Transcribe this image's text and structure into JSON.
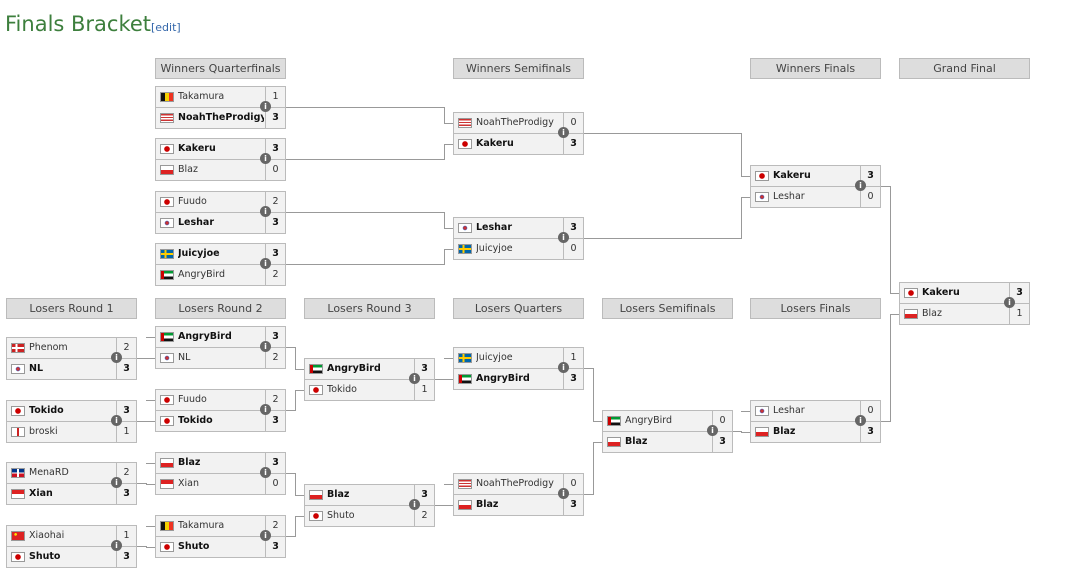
{
  "title": "Finals Bracket",
  "edit_label": "[edit]",
  "rounds": [
    {
      "title": "Winners Quarterfinals",
      "matches": [
        {
          "players": [
            {
              "name": "Takamura",
              "flag": "BE",
              "score": "1",
              "winner": false
            },
            {
              "name": "NoahTheProdigy",
              "flag": "US",
              "score": "3",
              "winner": true
            }
          ]
        },
        {
          "players": [
            {
              "name": "Kakeru",
              "flag": "JP",
              "score": "3",
              "winner": true
            },
            {
              "name": "Blaz",
              "flag": "CL",
              "score": "0",
              "winner": false
            }
          ]
        },
        {
          "players": [
            {
              "name": "Fuudo",
              "flag": "JP",
              "score": "2",
              "winner": false
            },
            {
              "name": "Leshar",
              "flag": "KR",
              "score": "3",
              "winner": true
            }
          ]
        },
        {
          "players": [
            {
              "name": "Juicyjoe",
              "flag": "SE",
              "score": "3",
              "winner": true
            },
            {
              "name": "AngryBird",
              "flag": "AE",
              "score": "2",
              "winner": false
            }
          ]
        }
      ]
    },
    {
      "title": "Winners Semifinals",
      "matches": [
        {
          "players": [
            {
              "name": "NoahTheProdigy",
              "flag": "US",
              "score": "0",
              "winner": false
            },
            {
              "name": "Kakeru",
              "flag": "JP",
              "score": "3",
              "winner": true
            }
          ]
        },
        {
          "players": [
            {
              "name": "Leshar",
              "flag": "KR",
              "score": "3",
              "winner": true
            },
            {
              "name": "Juicyjoe",
              "flag": "SE",
              "score": "0",
              "winner": false
            }
          ]
        }
      ]
    },
    {
      "title": "Winners Finals",
      "matches": [
        {
          "players": [
            {
              "name": "Kakeru",
              "flag": "JP",
              "score": "3",
              "winner": true
            },
            {
              "name": "Leshar",
              "flag": "KR",
              "score": "0",
              "winner": false
            }
          ]
        }
      ]
    },
    {
      "title": "Grand Final",
      "matches": [
        {
          "players": [
            {
              "name": "Kakeru",
              "flag": "JP",
              "score": "3",
              "winner": true
            },
            {
              "name": "Blaz",
              "flag": "CL",
              "score": "1",
              "winner": false
            }
          ]
        }
      ]
    },
    {
      "title": "Losers Round 1",
      "matches": [
        {
          "players": [
            {
              "name": "Phenom",
              "flag": "NO",
              "score": "2",
              "winner": false
            },
            {
              "name": "NL",
              "flag": "KR",
              "score": "3",
              "winner": true
            }
          ]
        },
        {
          "players": [
            {
              "name": "Tokido",
              "flag": "JP",
              "score": "3",
              "winner": true
            },
            {
              "name": "broski",
              "flag": "GB",
              "score": "1",
              "winner": false
            }
          ]
        },
        {
          "players": [
            {
              "name": "MenaRD",
              "flag": "DO",
              "score": "2",
              "winner": false
            },
            {
              "name": "Xian",
              "flag": "SG",
              "score": "3",
              "winner": true
            }
          ]
        },
        {
          "players": [
            {
              "name": "Xiaohai",
              "flag": "CN",
              "score": "1",
              "winner": false
            },
            {
              "name": "Shuto",
              "flag": "JP",
              "score": "3",
              "winner": true
            }
          ]
        }
      ]
    },
    {
      "title": "Losers Round 2",
      "matches": [
        {
          "players": [
            {
              "name": "AngryBird",
              "flag": "AE",
              "score": "3",
              "winner": true
            },
            {
              "name": "NL",
              "flag": "KR",
              "score": "2",
              "winner": false
            }
          ]
        },
        {
          "players": [
            {
              "name": "Fuudo",
              "flag": "JP",
              "score": "2",
              "winner": false
            },
            {
              "name": "Tokido",
              "flag": "JP",
              "score": "3",
              "winner": true
            }
          ]
        },
        {
          "players": [
            {
              "name": "Blaz",
              "flag": "CL",
              "score": "3",
              "winner": true
            },
            {
              "name": "Xian",
              "flag": "SG",
              "score": "0",
              "winner": false
            }
          ]
        },
        {
          "players": [
            {
              "name": "Takamura",
              "flag": "BE",
              "score": "2",
              "winner": false
            },
            {
              "name": "Shuto",
              "flag": "JP",
              "score": "3",
              "winner": true
            }
          ]
        }
      ]
    },
    {
      "title": "Losers Round 3",
      "matches": [
        {
          "players": [
            {
              "name": "AngryBird",
              "flag": "AE",
              "score": "3",
              "winner": true
            },
            {
              "name": "Tokido",
              "flag": "JP",
              "score": "1",
              "winner": false
            }
          ]
        },
        {
          "players": [
            {
              "name": "Blaz",
              "flag": "CL",
              "score": "3",
              "winner": true
            },
            {
              "name": "Shuto",
              "flag": "JP",
              "score": "2",
              "winner": false
            }
          ]
        }
      ]
    },
    {
      "title": "Losers Quarters",
      "matches": [
        {
          "players": [
            {
              "name": "Juicyjoe",
              "flag": "SE",
              "score": "1",
              "winner": false
            },
            {
              "name": "AngryBird",
              "flag": "AE",
              "score": "3",
              "winner": true
            }
          ]
        },
        {
          "players": [
            {
              "name": "NoahTheProdigy",
              "flag": "US",
              "score": "0",
              "winner": false
            },
            {
              "name": "Blaz",
              "flag": "CL",
              "score": "3",
              "winner": true
            }
          ]
        }
      ]
    },
    {
      "title": "Losers Semifinals",
      "matches": [
        {
          "players": [
            {
              "name": "AngryBird",
              "flag": "AE",
              "score": "0",
              "winner": false
            },
            {
              "name": "Blaz",
              "flag": "CL",
              "score": "3",
              "winner": true
            }
          ]
        }
      ]
    },
    {
      "title": "Losers Finals",
      "matches": [
        {
          "players": [
            {
              "name": "Leshar",
              "flag": "KR",
              "score": "0",
              "winner": false
            },
            {
              "name": "Blaz",
              "flag": "CL",
              "score": "3",
              "winner": true
            }
          ]
        }
      ]
    }
  ],
  "info_icon": "info-icon",
  "line_color": "#999999",
  "title_color": "#3d7f3d"
}
